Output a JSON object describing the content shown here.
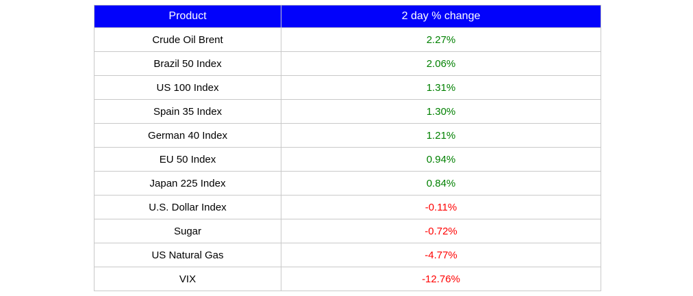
{
  "colors": {
    "header_bg": "#0202fb",
    "header_text": "#ffffff",
    "positive": "#008000",
    "negative": "#ff0000",
    "grid_border": "#c9c9c9",
    "product_text": "#000000",
    "canvas_bg": "#ffffff"
  },
  "table": {
    "headers": [
      "Product",
      "2 day % change"
    ],
    "rows": [
      {
        "product": "Crude Oil Brent",
        "change": "2.27%",
        "direction": "positive"
      },
      {
        "product": "Brazil 50 Index",
        "change": "2.06%",
        "direction": "positive"
      },
      {
        "product": "US 100 Index",
        "change": "1.31%",
        "direction": "positive"
      },
      {
        "product": "Spain 35 Index",
        "change": "1.30%",
        "direction": "positive"
      },
      {
        "product": "German 40 Index",
        "change": "1.21%",
        "direction": "positive"
      },
      {
        "product": "EU 50 Index",
        "change": "0.94%",
        "direction": "positive"
      },
      {
        "product": "Japan 225 Index",
        "change": "0.84%",
        "direction": "positive"
      },
      {
        "product": "U.S. Dollar Index",
        "change": "-0.11%",
        "direction": "negative"
      },
      {
        "product": "Sugar",
        "change": "-0.72%",
        "direction": "negative"
      },
      {
        "product": "US Natural Gas",
        "change": "-4.77%",
        "direction": "negative"
      },
      {
        "product": "VIX",
        "change": "-12.76%",
        "direction": "negative"
      }
    ]
  },
  "chart_data": {
    "type": "table",
    "title": "",
    "columns": [
      "Product",
      "2 day % change"
    ],
    "rows": [
      [
        "Crude Oil Brent",
        2.27
      ],
      [
        "Brazil 50 Index",
        2.06
      ],
      [
        "US 100 Index",
        1.31
      ],
      [
        "Spain 35 Index",
        1.3
      ],
      [
        "German 40 Index",
        1.21
      ],
      [
        "EU 50 Index",
        0.94
      ],
      [
        "Japan 225 Index",
        0.84
      ],
      [
        "U.S. Dollar Index",
        -0.11
      ],
      [
        "Sugar",
        -0.72
      ],
      [
        "US Natural Gas",
        -4.77
      ],
      [
        "VIX",
        -12.76
      ]
    ],
    "value_format": "percent",
    "positive_color": "#008000",
    "negative_color": "#ff0000"
  }
}
